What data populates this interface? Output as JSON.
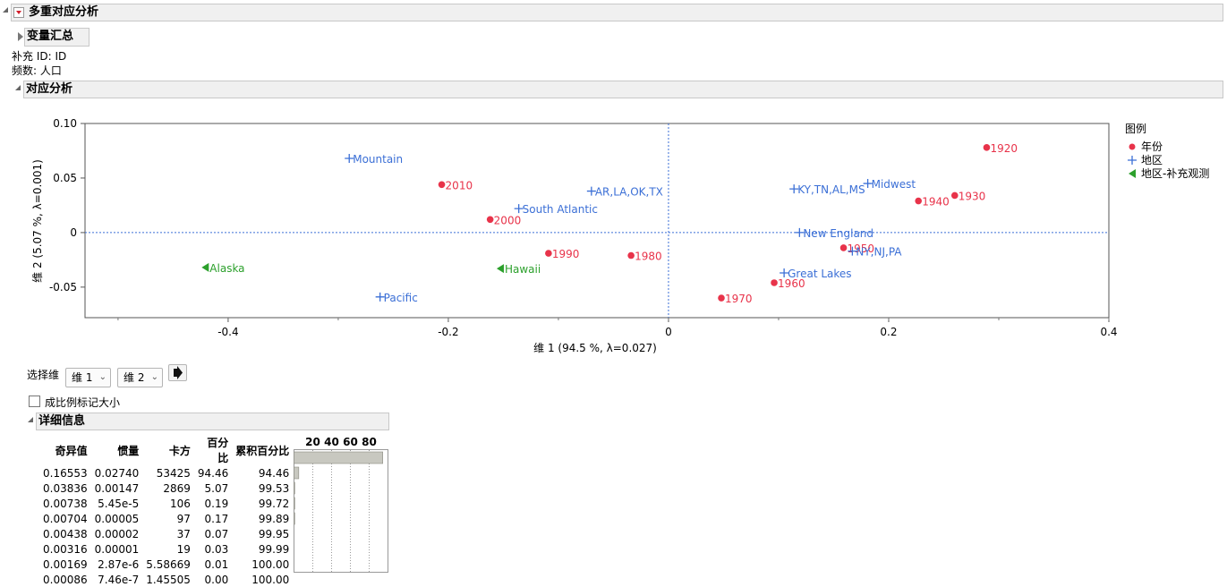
{
  "report": {
    "title": "多重对应分析",
    "variable_summary": "变量汇总",
    "supplementary_line": "补充 ID: ID",
    "freq_line": "频数: 人口",
    "ca_title": "对应分析"
  },
  "chart_data": {
    "type": "scatter",
    "xlabel": "维 1  (94.5 %, λ=0.027)",
    "ylabel": "维 2  (5.07 %, λ=0.001)",
    "xlim": [
      -0.53,
      0.4
    ],
    "ylim": [
      -0.078,
      0.1
    ],
    "x_ticks": [
      -0.4,
      -0.2,
      0,
      0.2,
      0.4
    ],
    "x_tick_labels": [
      "-0.4",
      "-0.2",
      "0",
      "0.2",
      "0.4"
    ],
    "y_ticks": [
      -0.05,
      0,
      0.05,
      0.1
    ],
    "y_tick_labels": [
      "-0.05",
      "0",
      "0.05",
      "0.10"
    ],
    "reference_lines": {
      "x": 0,
      "y": 0
    },
    "legend": {
      "title": "图例",
      "position": "right",
      "entries": [
        "年份",
        "地区",
        "地区-补充观测"
      ]
    },
    "series": [
      {
        "name": "年份",
        "marker": "circle",
        "color": "#e8334a",
        "points": [
          {
            "label": "1920",
            "x": 0.289,
            "y": 0.078
          },
          {
            "label": "1930",
            "x": 0.26,
            "y": 0.034
          },
          {
            "label": "1940",
            "x": 0.227,
            "y": 0.029
          },
          {
            "label": "1950",
            "x": 0.159,
            "y": -0.014
          },
          {
            "label": "1960",
            "x": 0.096,
            "y": -0.046
          },
          {
            "label": "1970",
            "x": 0.048,
            "y": -0.06
          },
          {
            "label": "1980",
            "x": -0.034,
            "y": -0.021
          },
          {
            "label": "1990",
            "x": -0.109,
            "y": -0.019
          },
          {
            "label": "2000",
            "x": -0.162,
            "y": 0.012
          },
          {
            "label": "2010",
            "x": -0.206,
            "y": 0.044
          }
        ]
      },
      {
        "name": "地区",
        "marker": "plus",
        "color": "#3b6fd6",
        "points": [
          {
            "label": "Mountain",
            "x": -0.29,
            "y": 0.068
          },
          {
            "label": "AR,LA,OK,TX",
            "x": -0.07,
            "y": 0.038
          },
          {
            "label": "South Atlantic",
            "x": -0.136,
            "y": 0.022
          },
          {
            "label": "Pacific",
            "x": -0.262,
            "y": -0.059
          },
          {
            "label": "KY,TN,AL,MS",
            "x": 0.114,
            "y": 0.04
          },
          {
            "label": "Midwest",
            "x": 0.181,
            "y": 0.045
          },
          {
            "label": "New England",
            "x": 0.119,
            "y": 0.0
          },
          {
            "label": "NY,NJ,PA",
            "x": 0.167,
            "y": -0.017
          },
          {
            "label": "Great Lakes",
            "x": 0.105,
            "y": -0.037
          }
        ]
      },
      {
        "name": "地区-补充观测",
        "marker": "triangle-left",
        "color": "#2ca02c",
        "points": [
          {
            "label": "Alaska",
            "x": -0.42,
            "y": -0.032
          },
          {
            "label": "Hawaii",
            "x": -0.152,
            "y": -0.033
          }
        ]
      }
    ]
  },
  "controls": {
    "select_dim_label": "选择维",
    "dim_a": "维 1",
    "dim_b": "维 2",
    "go_icon": "arrow-right-icon",
    "checkbox_label": "成比例标记大小",
    "checked": false
  },
  "details": {
    "title": "详细信息",
    "headers": [
      "奇异值",
      "惯量",
      "卡方",
      "百分比",
      "累积百分比"
    ],
    "bar_ticks": [
      "20",
      "40",
      "60",
      "80"
    ],
    "rows": [
      {
        "sv": "0.16553",
        "inertia": "0.02740",
        "chisq": "53425",
        "pct": "94.46",
        "cum": "94.46",
        "pct_value": 94.46
      },
      {
        "sv": "0.03836",
        "inertia": "0.00147",
        "chisq": "2869",
        "pct": "5.07",
        "cum": "99.53",
        "pct_value": 5.07
      },
      {
        "sv": "0.00738",
        "inertia": "5.45e-5",
        "chisq": "106",
        "pct": "0.19",
        "cum": "99.72",
        "pct_value": 0.19
      },
      {
        "sv": "0.00704",
        "inertia": "0.00005",
        "chisq": "97",
        "pct": "0.17",
        "cum": "99.89",
        "pct_value": 0.17
      },
      {
        "sv": "0.00438",
        "inertia": "0.00002",
        "chisq": "37",
        "pct": "0.07",
        "cum": "99.95",
        "pct_value": 0.07
      },
      {
        "sv": "0.00316",
        "inertia": "0.00001",
        "chisq": "19",
        "pct": "0.03",
        "cum": "99.99",
        "pct_value": 0.03
      },
      {
        "sv": "0.00169",
        "inertia": "2.87e-6",
        "chisq": "5.58669",
        "pct": "0.01",
        "cum": "100.00",
        "pct_value": 0.01
      },
      {
        "sv": "0.00086",
        "inertia": "7.46e-7",
        "chisq": "1.45505",
        "pct": "0.00",
        "cum": "100.00",
        "pct_value": 0.0
      }
    ]
  }
}
